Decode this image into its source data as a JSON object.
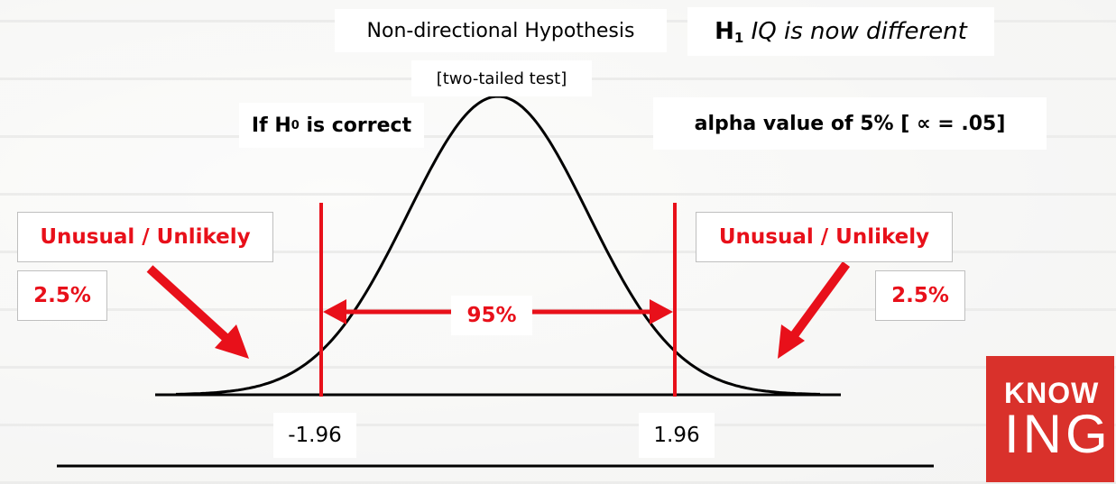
{
  "title": "Non-directional Hypothesis",
  "subtitle": "[two-tailed test]",
  "h1": {
    "symbol": "H",
    "sub": "1",
    "statement": "IQ is now different"
  },
  "h0": {
    "prefix": "If H",
    "sub": "0",
    "suffix": "is correct"
  },
  "alpha_label": "alpha value of 5% [ ∝  = .05]",
  "left_tail": {
    "label": "Unusual / Unlikely",
    "pct": "2.5%"
  },
  "right_tail": {
    "label": "Unusual / Unlikely",
    "pct": "2.5%"
  },
  "center_pct": "95%",
  "crit_left": "-1.96",
  "crit_right": "1.96",
  "logo": {
    "line1": "KNOW",
    "line2": "ING"
  },
  "colors": {
    "accent_red": "#e8101a",
    "logo_red": "#d9312b",
    "curve": "#000000"
  }
}
